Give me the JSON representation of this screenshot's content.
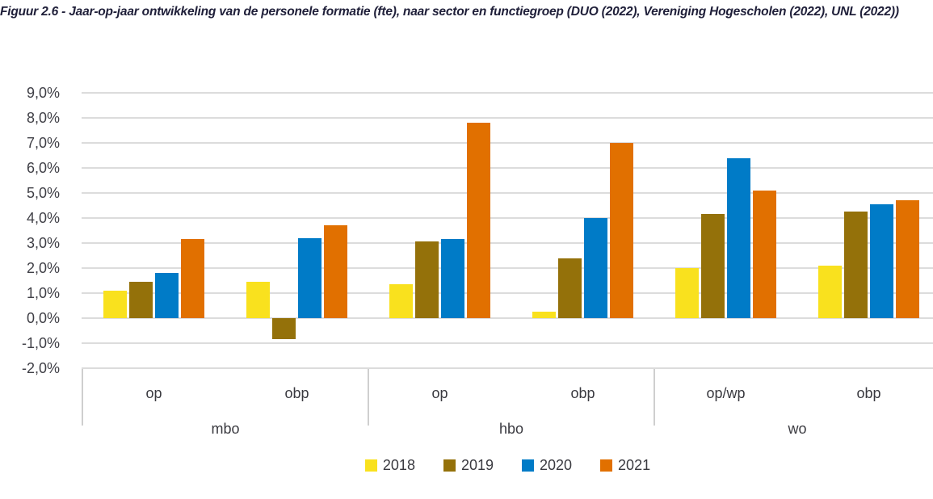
{
  "title": "Figuur 2.6 - Jaar-op-jaar ontwikkeling van de personele formatie (fte), naar sector en functiegroep (DUO (2022), Vereniging Hogescholen (2022), UNL (2022))",
  "chart_data": {
    "type": "bar",
    "title": "Figuur 2.6 - Jaar-op-jaar ontwikkeling van de personele formatie (fte), naar sector en functiegroep (DUO (2022), Vereniging Hogescholen (2022), UNL (2022))",
    "ylabel": "",
    "ylim": [
      -2.0,
      9.0
    ],
    "ytick_step": 1.0,
    "grid": true,
    "legend_position": "bottom",
    "y_tick_labels": [
      "9,0%",
      "8,0%",
      "7,0%",
      "6,0%",
      "5,0%",
      "4,0%",
      "3,0%",
      "2,0%",
      "1,0%",
      "0,0%",
      "-1,0%",
      "-2,0%"
    ],
    "series": [
      {
        "name": "2018",
        "color": "#F9E11E",
        "values": [
          1.1,
          1.45,
          1.35,
          0.25,
          2.0,
          2.1
        ]
      },
      {
        "name": "2019",
        "color": "#94710A",
        "values": [
          1.45,
          -0.85,
          3.05,
          2.4,
          4.15,
          4.25
        ]
      },
      {
        "name": "2020",
        "color": "#007BC7",
        "values": [
          1.8,
          3.2,
          3.15,
          4.0,
          6.4,
          4.55
        ]
      },
      {
        "name": "2021",
        "color": "#E17000",
        "values": [
          3.15,
          3.7,
          7.8,
          7.0,
          5.1,
          4.7
        ]
      }
    ],
    "categories": [
      "op",
      "obp",
      "op",
      "obp",
      "op/wp",
      "obp"
    ],
    "sectors": [
      {
        "label": "mbo",
        "groups": [
          "op",
          "obp"
        ]
      },
      {
        "label": "hbo",
        "groups": [
          "op",
          "obp"
        ]
      },
      {
        "label": "wo",
        "groups": [
          "op/wp",
          "obp"
        ]
      }
    ]
  },
  "legend": {
    "items": [
      {
        "label": "2018",
        "color": "#F9E11E"
      },
      {
        "label": "2019",
        "color": "#94710A"
      },
      {
        "label": "2020",
        "color": "#007BC7"
      },
      {
        "label": "2021",
        "color": "#E17000"
      }
    ]
  },
  "colors": {
    "gridline": "#dcdcdc",
    "separator": "#cfcfcf",
    "axis_text": "#3a3a40",
    "title_text": "#20203a"
  }
}
